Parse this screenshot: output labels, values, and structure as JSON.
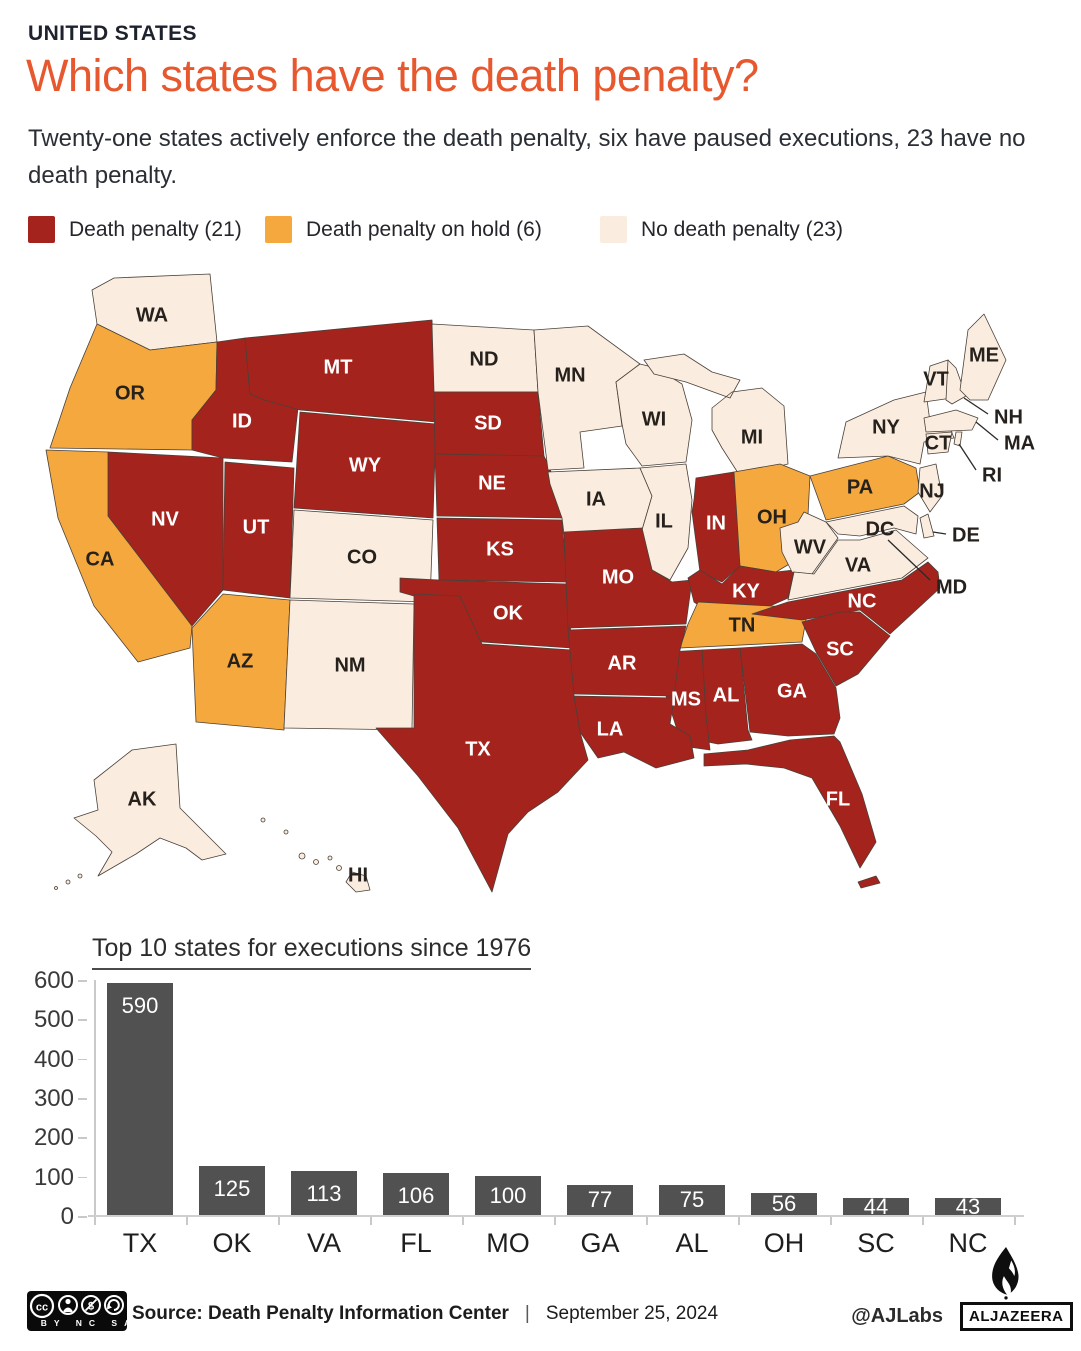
{
  "header": {
    "kicker": "UNITED STATES",
    "title": "Which states have the death penalty?",
    "subtitle": "Twenty-one states actively enforce the death penalty, six have paused executions, 23 have no death penalty."
  },
  "legend": {
    "items": [
      {
        "key": "active",
        "label": "Death penalty (21)",
        "color": "#A5231D"
      },
      {
        "key": "hold",
        "label": "Death penalty on hold (6)",
        "color": "#F4A83E"
      },
      {
        "key": "none",
        "label": "No death penalty (23)",
        "color": "#FAEDE0"
      }
    ]
  },
  "map": {
    "label_dark": "#26211c",
    "label_light": "#ffffff",
    "states": {
      "WA": {
        "abbr": "WA",
        "status": "none"
      },
      "OR": {
        "abbr": "OR",
        "status": "hold"
      },
      "CA": {
        "abbr": "CA",
        "status": "hold"
      },
      "NV": {
        "abbr": "NV",
        "status": "active"
      },
      "ID": {
        "abbr": "ID",
        "status": "active"
      },
      "MT": {
        "abbr": "MT",
        "status": "active"
      },
      "WY": {
        "abbr": "WY",
        "status": "active"
      },
      "UT": {
        "abbr": "UT",
        "status": "active"
      },
      "AZ": {
        "abbr": "AZ",
        "status": "hold"
      },
      "NM": {
        "abbr": "NM",
        "status": "none"
      },
      "CO": {
        "abbr": "CO",
        "status": "none"
      },
      "ND": {
        "abbr": "ND",
        "status": "none"
      },
      "SD": {
        "abbr": "SD",
        "status": "active"
      },
      "NE": {
        "abbr": "NE",
        "status": "active"
      },
      "KS": {
        "abbr": "KS",
        "status": "active"
      },
      "OK": {
        "abbr": "OK",
        "status": "active"
      },
      "TX": {
        "abbr": "TX",
        "status": "active"
      },
      "MN": {
        "abbr": "MN",
        "status": "none"
      },
      "IA": {
        "abbr": "IA",
        "status": "none"
      },
      "MO": {
        "abbr": "MO",
        "status": "active"
      },
      "AR": {
        "abbr": "AR",
        "status": "active"
      },
      "LA": {
        "abbr": "LA",
        "status": "active"
      },
      "WI": {
        "abbr": "WI",
        "status": "none"
      },
      "IL": {
        "abbr": "IL",
        "status": "none"
      },
      "MI": {
        "abbr": "MI",
        "status": "none"
      },
      "IN": {
        "abbr": "IN",
        "status": "active"
      },
      "OH": {
        "abbr": "OH",
        "status": "hold"
      },
      "KY": {
        "abbr": "KY",
        "status": "active"
      },
      "TN": {
        "abbr": "TN",
        "status": "hold"
      },
      "MS": {
        "abbr": "MS",
        "status": "active"
      },
      "AL": {
        "abbr": "AL",
        "status": "active"
      },
      "GA": {
        "abbr": "GA",
        "status": "active"
      },
      "FL": {
        "abbr": "FL",
        "status": "active"
      },
      "SC": {
        "abbr": "SC",
        "status": "active"
      },
      "NC": {
        "abbr": "NC",
        "status": "active"
      },
      "VA": {
        "abbr": "VA",
        "status": "none"
      },
      "WV": {
        "abbr": "WV",
        "status": "none"
      },
      "PA": {
        "abbr": "PA",
        "status": "hold"
      },
      "NY": {
        "abbr": "NY",
        "status": "none"
      },
      "NJ": {
        "abbr": "NJ",
        "status": "none"
      },
      "ME": {
        "abbr": "ME",
        "status": "none"
      },
      "VT": {
        "abbr": "VT",
        "status": "none"
      },
      "NH": {
        "abbr": "NH",
        "status": "none"
      },
      "MA": {
        "abbr": "MA",
        "status": "none"
      },
      "CT": {
        "abbr": "CT",
        "status": "none"
      },
      "RI": {
        "abbr": "RI",
        "status": "none"
      },
      "DE": {
        "abbr": "DE",
        "status": "none"
      },
      "MD": {
        "abbr": "MD",
        "status": "none"
      },
      "DC": {
        "abbr": "DC",
        "status": "none"
      },
      "AK": {
        "abbr": "AK",
        "status": "none"
      },
      "HI": {
        "abbr": "HI",
        "status": "none"
      }
    }
  },
  "chart_data": {
    "type": "bar",
    "title": "Top 10 states for executions since 1976",
    "categories": [
      "TX",
      "OK",
      "VA",
      "FL",
      "MO",
      "GA",
      "AL",
      "OH",
      "SC",
      "NC"
    ],
    "values": [
      590,
      125,
      113,
      106,
      100,
      77,
      75,
      56,
      44,
      43
    ],
    "bar_color": "#515151",
    "value_label_color": "#ffffff",
    "xlabel": "",
    "ylabel": "",
    "ylim": [
      0,
      600
    ],
    "yticks": [
      0,
      100,
      200,
      300,
      400,
      500,
      600
    ],
    "grid": false,
    "legend_position": "none"
  },
  "footer": {
    "license_badge": {
      "cc": "CC",
      "terms": "BY NC SA"
    },
    "source": "Source: Death Penalty Information Center",
    "separator": "|",
    "date": "September 25, 2024",
    "credit": "@AJLabs",
    "brand": "ALJAZEERA"
  }
}
